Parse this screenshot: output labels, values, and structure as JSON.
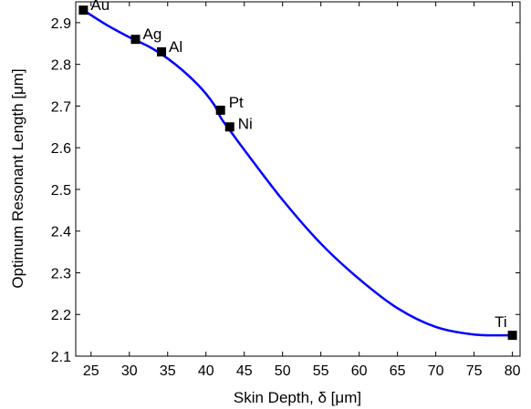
{
  "chart_data": {
    "type": "line",
    "xlabel": "Skin Depth, δ [μm]",
    "ylabel": "Optimum Resonant Length [μm]",
    "xlim": [
      23,
      81
    ],
    "ylim": [
      2.1,
      2.95
    ],
    "xticks": [
      "25",
      "30",
      "35",
      "40",
      "45",
      "50",
      "55",
      "60",
      "65",
      "70",
      "75",
      "80"
    ],
    "yticks": [
      "2.1",
      "2.2",
      "2.3",
      "2.4",
      "2.5",
      "2.6",
      "2.7",
      "2.8",
      "2.9"
    ],
    "grid": false,
    "series": [
      {
        "color": "#0000ff",
        "x": [
          24,
          27,
          30,
          33,
          36,
          39,
          41,
          42,
          43,
          45,
          50,
          55,
          60,
          65,
          70,
          75,
          80
        ],
        "y": [
          2.93,
          2.895,
          2.865,
          2.838,
          2.8,
          2.75,
          2.705,
          2.67,
          2.645,
          2.595,
          2.475,
          2.37,
          2.285,
          2.215,
          2.17,
          2.152,
          2.15
        ]
      }
    ],
    "points": [
      {
        "label": "Au",
        "x": 24,
        "y": 2.93
      },
      {
        "label": "Ag",
        "x": 30.8,
        "y": 2.86
      },
      {
        "label": "Al",
        "x": 34.2,
        "y": 2.83
      },
      {
        "label": "Pt",
        "x": 41.9,
        "y": 2.69
      },
      {
        "label": "Ni",
        "x": 43.1,
        "y": 2.65
      },
      {
        "label": "Ti",
        "x": 80,
        "y": 2.15
      }
    ],
    "marker_color": "#000000"
  }
}
